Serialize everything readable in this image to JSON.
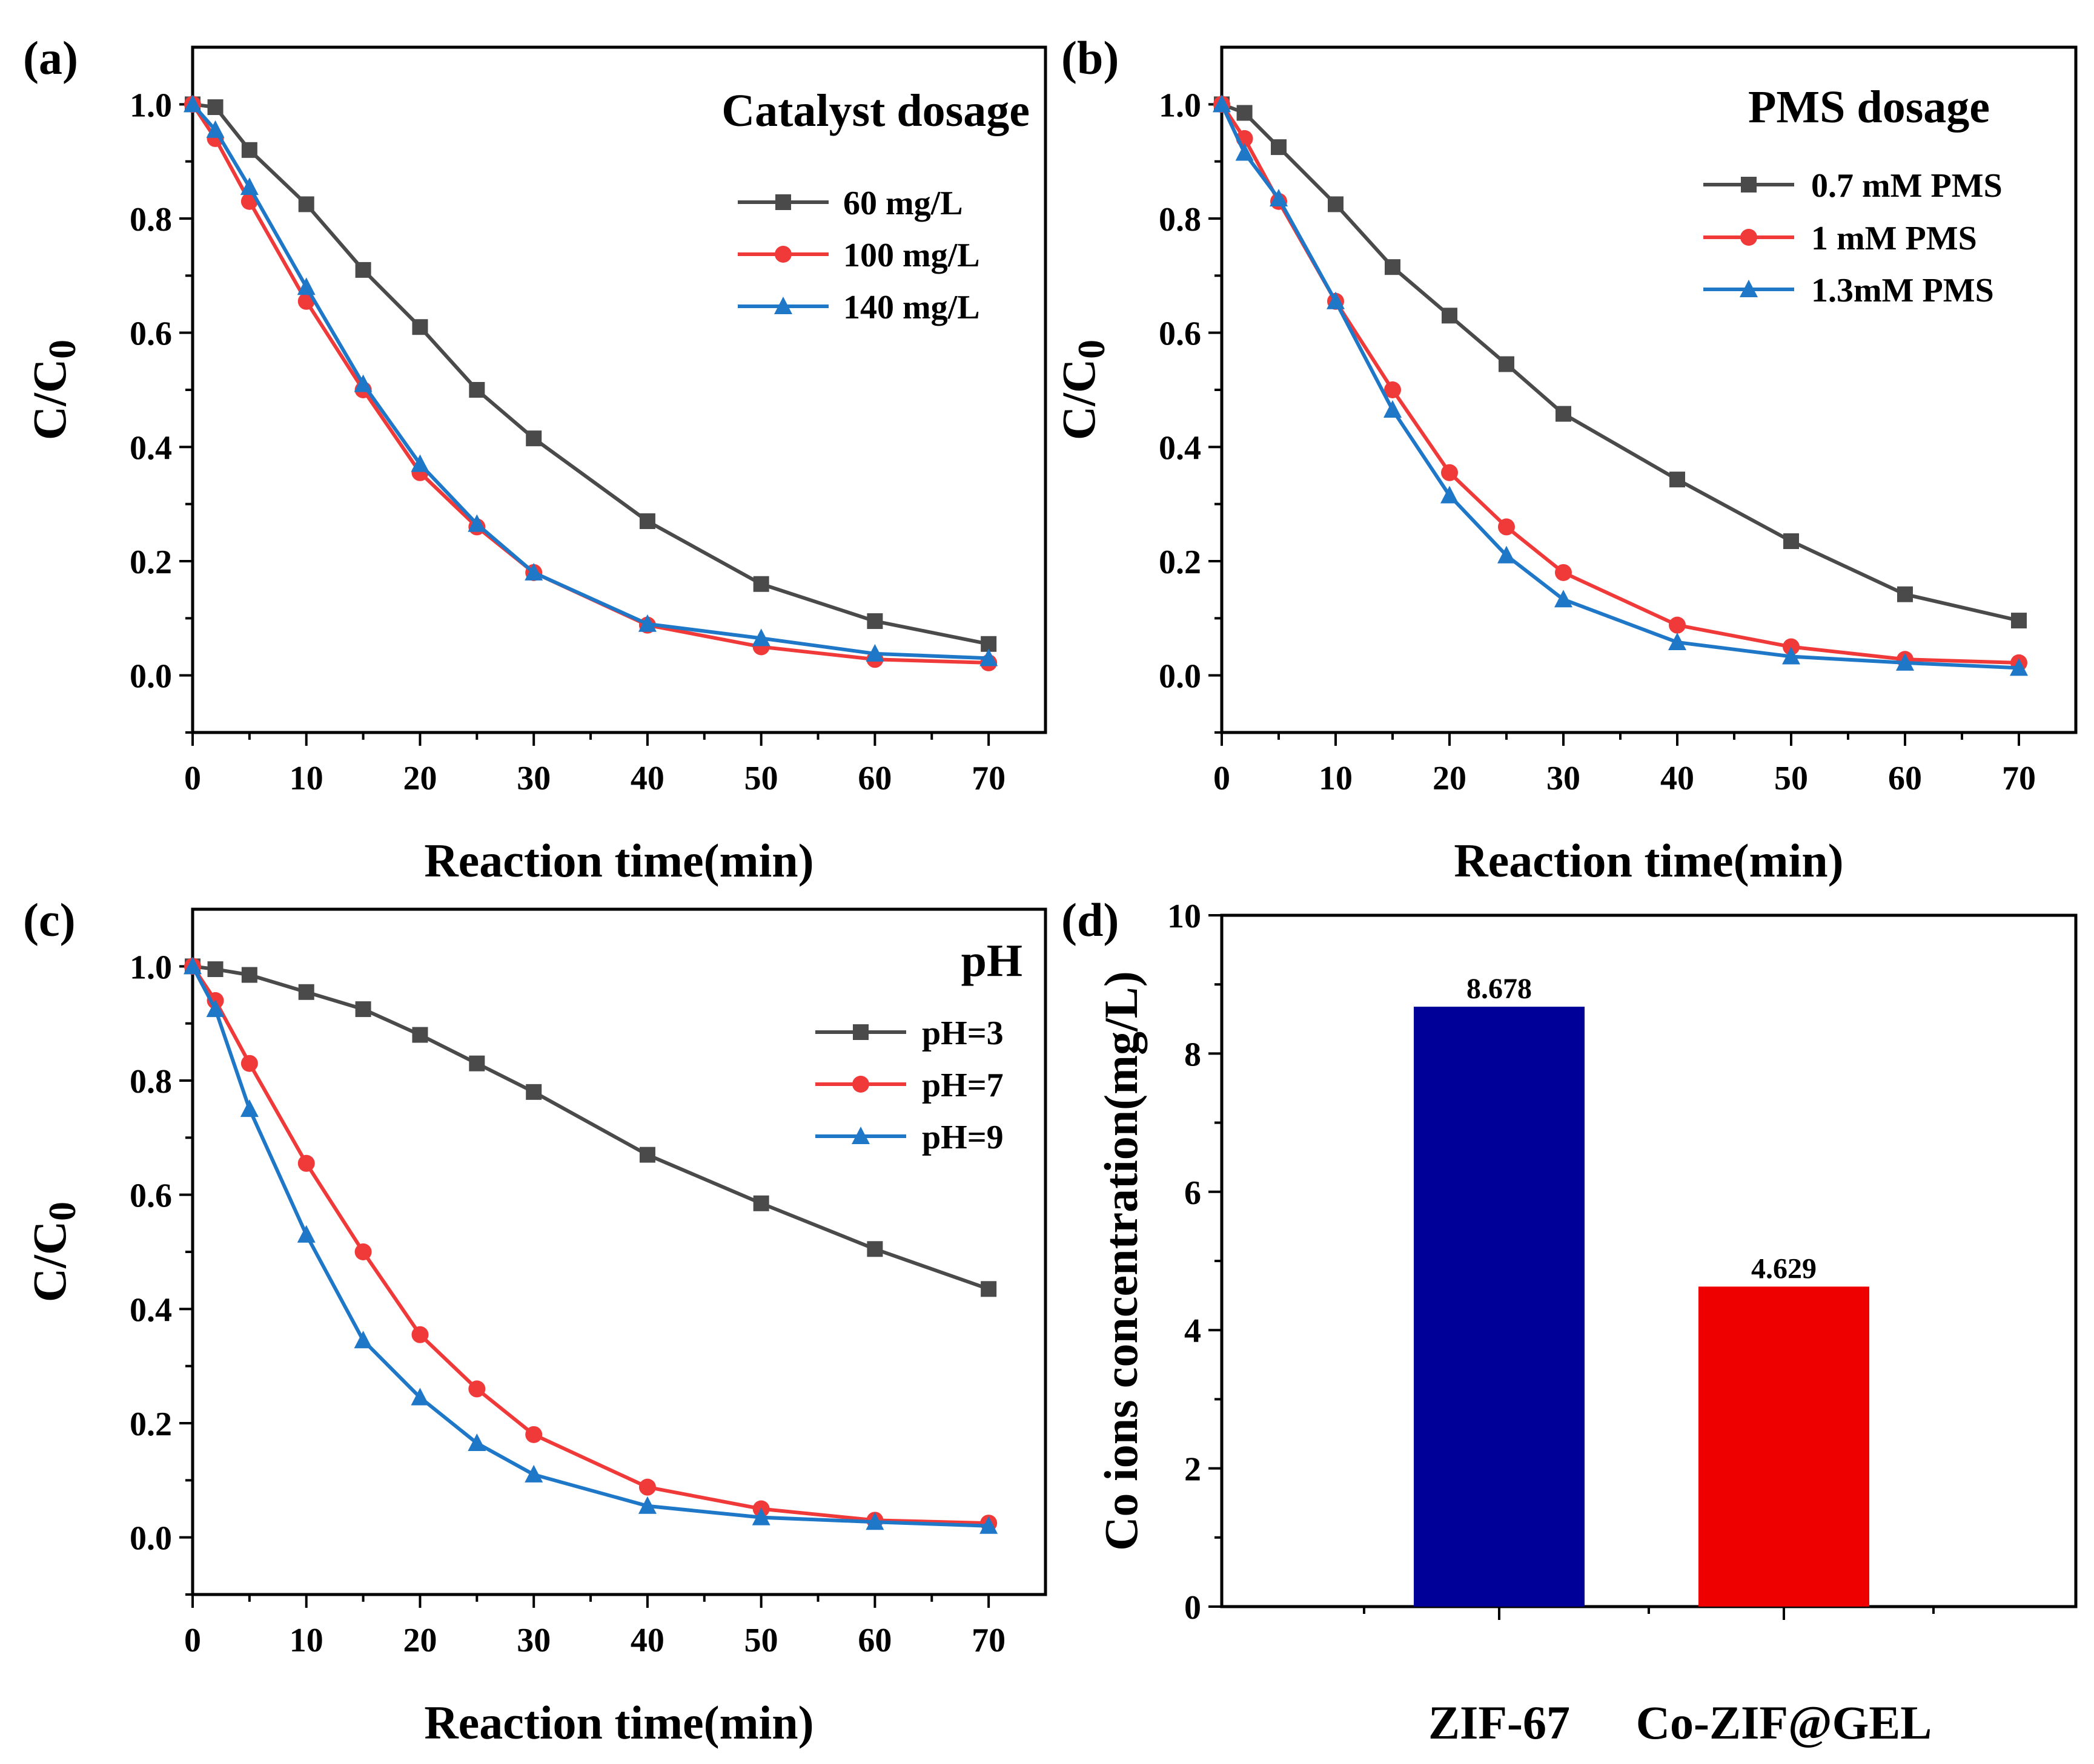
{
  "chart_data": [
    {
      "panel": "(a)",
      "type": "line",
      "title": "Catalyst dosage",
      "xlabel": "Reaction time(min)",
      "ylabel": "C/C0",
      "xlim": [
        0,
        75
      ],
      "ylim": [
        -0.1,
        1.1
      ],
      "xticks": [
        "0",
        "10",
        "20",
        "30",
        "40",
        "50",
        "60",
        "70"
      ],
      "yticks": [
        "0.0",
        "0.2",
        "0.4",
        "0.6",
        "0.8",
        "1.0"
      ],
      "legend_position": "top-right",
      "x": [
        0,
        2,
        5,
        10,
        15,
        20,
        25,
        30,
        40,
        50,
        60,
        70
      ],
      "series": [
        {
          "name": "60 mg/L",
          "color": "#4a4a4a",
          "marker": "square",
          "values": [
            1.0,
            0.995,
            0.92,
            0.825,
            0.71,
            0.61,
            0.5,
            0.415,
            0.27,
            0.16,
            0.095,
            0.055
          ]
        },
        {
          "name": "100 mg/L",
          "color": "#f03a3a",
          "marker": "circle",
          "values": [
            1.0,
            0.94,
            0.83,
            0.655,
            0.5,
            0.355,
            0.26,
            0.18,
            0.088,
            0.05,
            0.028,
            0.022
          ]
        },
        {
          "name": "140 mg/L",
          "color": "#1f77c8",
          "marker": "triangle",
          "values": [
            1.0,
            0.955,
            0.855,
            0.68,
            0.51,
            0.37,
            0.265,
            0.18,
            0.09,
            0.065,
            0.038,
            0.03
          ]
        }
      ]
    },
    {
      "panel": "(b)",
      "type": "line",
      "title": "PMS dosage",
      "xlabel": "Reaction time(min)",
      "ylabel": "C/C0",
      "xlim": [
        0,
        75
      ],
      "ylim": [
        -0.1,
        1.1
      ],
      "xticks": [
        "0",
        "10",
        "20",
        "30",
        "40",
        "50",
        "60",
        "70"
      ],
      "yticks": [
        "0.0",
        "0.2",
        "0.4",
        "0.6",
        "0.8",
        "1.0"
      ],
      "legend_position": "top-right",
      "x": [
        0,
        2,
        5,
        10,
        15,
        20,
        25,
        30,
        40,
        50,
        60,
        70
      ],
      "series": [
        {
          "name": "0.7 mM PMS",
          "color": "#4a4a4a",
          "marker": "square",
          "values": [
            1.0,
            0.985,
            0.925,
            0.825,
            0.715,
            0.63,
            0.545,
            0.458,
            0.343,
            0.235,
            0.142,
            0.096
          ]
        },
        {
          "name": "1 mM PMS",
          "color": "#f03a3a",
          "marker": "circle",
          "values": [
            1.0,
            0.94,
            0.83,
            0.655,
            0.5,
            0.355,
            0.26,
            0.18,
            0.088,
            0.05,
            0.028,
            0.022
          ]
        },
        {
          "name": "1.3mM PMS",
          "color": "#1f77c8",
          "marker": "triangle",
          "values": [
            1.0,
            0.915,
            0.835,
            0.655,
            0.465,
            0.315,
            0.21,
            0.133,
            0.058,
            0.033,
            0.022,
            0.013
          ]
        }
      ]
    },
    {
      "panel": "(c)",
      "type": "line",
      "title": "pH",
      "xlabel": "Reaction time(min)",
      "ylabel": "C/C0",
      "xlim": [
        0,
        75
      ],
      "ylim": [
        -0.1,
        1.1
      ],
      "xticks": [
        "0",
        "10",
        "20",
        "30",
        "40",
        "50",
        "60",
        "70"
      ],
      "yticks": [
        "0.0",
        "0.2",
        "0.4",
        "0.6",
        "0.8",
        "1.0"
      ],
      "legend_position": "top-right",
      "x": [
        0,
        2,
        5,
        10,
        15,
        20,
        25,
        30,
        40,
        50,
        60,
        70
      ],
      "series": [
        {
          "name": "pH=3",
          "color": "#4a4a4a",
          "marker": "square",
          "values": [
            1.0,
            0.995,
            0.985,
            0.955,
            0.925,
            0.88,
            0.83,
            0.78,
            0.67,
            0.585,
            0.505,
            0.435
          ]
        },
        {
          "name": "pH=7",
          "color": "#f03a3a",
          "marker": "circle",
          "values": [
            1.0,
            0.94,
            0.83,
            0.655,
            0.5,
            0.355,
            0.26,
            0.18,
            0.088,
            0.05,
            0.03,
            0.025
          ]
        },
        {
          "name": "pH=9",
          "color": "#1f77c8",
          "marker": "triangle",
          "values": [
            1.0,
            0.925,
            0.75,
            0.53,
            0.345,
            0.245,
            0.165,
            0.11,
            0.055,
            0.035,
            0.027,
            0.02
          ]
        }
      ]
    },
    {
      "panel": "(d)",
      "type": "bar",
      "ylabel": "Co ions concentration(mg/L)",
      "ylim": [
        0,
        10
      ],
      "yticks": [
        "0",
        "2",
        "4",
        "6",
        "8",
        "10"
      ],
      "categories": [
        "ZIF-67",
        "Co-ZIF@GEL"
      ],
      "values": [
        8.678,
        4.629
      ],
      "value_labels": [
        "8.678",
        "4.629"
      ],
      "colors": [
        "#000099",
        "#ee0000"
      ]
    }
  ]
}
